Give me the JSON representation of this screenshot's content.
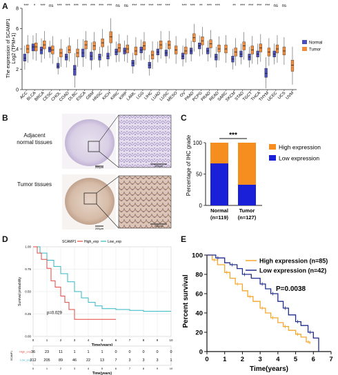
{
  "panel_labels": {
    "a": "A",
    "b": "B",
    "c": "C",
    "d": "D",
    "e": "E"
  },
  "panel_b": {
    "row1_label_line1": "Adjacent",
    "row1_label_line2": "normal tissues",
    "row2_label": "Tumor tissues",
    "scale_small": "200μm",
    "scale_large": "200μm"
  },
  "colors": {
    "normal": "#4a4fb8",
    "tumor": "#f08c3c",
    "high_km": "#f5a62a",
    "low_km": "#1f2b8c",
    "d_high": "#e2463f",
    "d_low": "#2fb6c2"
  },
  "chart_data": [
    {
      "panel": "A",
      "type": "box",
      "ylabel_line1": "The expression of SCAMP1",
      "ylabel_line2": "Log2 (TPM+1)",
      "ylim": [
        0,
        8
      ],
      "yticks": [
        0,
        2,
        4,
        6,
        8
      ],
      "legend": [
        "Normal",
        "Tumor"
      ],
      "categories": [
        "ACC",
        "BLCA",
        "BRCA",
        "CESC",
        "CHOL",
        "COAD",
        "DLBC",
        "ESCA",
        "GBM",
        "HNSC",
        "KICH",
        "KIRC",
        "KIRP",
        "LAML",
        "LGG",
        "LIHC",
        "LUAD",
        "LUSC",
        "MESO",
        "OV",
        "PAAD",
        "PCPG",
        "PRAD",
        "READ",
        "SARC",
        "SKCM",
        "STAD",
        "TGCT",
        "THCA",
        "THYM",
        "UCEC",
        "UCS",
        "UVM"
      ],
      "significance": [
        "***",
        "*",
        "***",
        "ns",
        "***",
        "***",
        "***",
        "***",
        "***",
        "***",
        "***",
        "ns",
        "ns",
        "***",
        "***",
        "***",
        "***",
        "***",
        "",
        "***",
        "***",
        "**",
        "***",
        "***",
        "",
        "**",
        "***",
        "***",
        "***",
        "***",
        "ns",
        "ns",
        ""
      ],
      "normal_median": [
        3.1,
        4.2,
        3.9,
        4.0,
        2.3,
        3.2,
        2.0,
        3.6,
        3.3,
        3.2,
        3.3,
        3.7,
        3.8,
        2.6,
        3.9,
        2.4,
        3.7,
        3.6,
        null,
        3.3,
        3.8,
        4.3,
        3.8,
        3.2,
        null,
        3.0,
        3.5,
        3.2,
        3.5,
        1.6,
        3.5,
        null,
        null
      ],
      "normal_q1": [
        2.8,
        3.8,
        3.5,
        3.7,
        2.1,
        2.9,
        1.4,
        3.2,
        2.9,
        2.9,
        3.0,
        3.4,
        3.5,
        2.3,
        3.6,
        2.1,
        3.4,
        3.3,
        null,
        3.0,
        3.5,
        4.0,
        3.5,
        2.9,
        null,
        2.7,
        3.2,
        2.9,
        3.2,
        1.2,
        3.2,
        null,
        null
      ],
      "normal_q3": [
        3.5,
        4.5,
        4.2,
        4.2,
        2.6,
        3.5,
        2.4,
        4.0,
        3.7,
        3.5,
        3.6,
        4.0,
        4.1,
        2.9,
        4.2,
        2.7,
        4.0,
        3.9,
        null,
        3.6,
        4.1,
        4.6,
        4.1,
        3.5,
        null,
        3.3,
        3.8,
        3.5,
        3.8,
        2.1,
        3.8,
        null,
        null
      ],
      "tumor_median": [
        4.0,
        4.2,
        4.4,
        3.9,
        3.6,
        3.9,
        3.6,
        4.4,
        4.3,
        4.6,
        5.2,
        4.1,
        4.0,
        3.8,
        4.3,
        3.4,
        4.4,
        4.4,
        3.9,
        3.8,
        5.1,
        4.8,
        4.5,
        4.0,
        4.0,
        3.7,
        4.3,
        3.9,
        4.1,
        3.7,
        4.0,
        3.8,
        2.4
      ],
      "tumor_q1": [
        3.6,
        3.8,
        4.0,
        3.5,
        3.2,
        3.6,
        3.2,
        4.0,
        3.9,
        4.2,
        4.6,
        3.7,
        3.6,
        3.4,
        3.9,
        3.0,
        4.0,
        4.0,
        3.5,
        3.5,
        4.7,
        4.4,
        4.1,
        3.7,
        3.6,
        3.3,
        3.9,
        3.5,
        3.7,
        3.3,
        3.6,
        3.4,
        1.8
      ],
      "tumor_q3": [
        4.4,
        4.6,
        4.8,
        4.3,
        4.0,
        4.3,
        4.0,
        4.8,
        4.7,
        5.0,
        5.7,
        4.5,
        4.4,
        4.2,
        4.7,
        3.8,
        4.8,
        4.8,
        4.3,
        4.2,
        5.5,
        5.2,
        4.9,
        4.4,
        4.4,
        4.1,
        4.7,
        4.3,
        4.5,
        4.1,
        4.4,
        4.2,
        2.9
      ]
    },
    {
      "panel": "C",
      "type": "stacked-bar",
      "ylabel": "Percentage of IHC grade",
      "ylim": [
        0,
        100
      ],
      "yticks": [
        0,
        50,
        100
      ],
      "categories": [
        "Normal",
        "Tumor"
      ],
      "category_n": [
        "(n=119)",
        "(n=127)"
      ],
      "significance": "***",
      "series": [
        {
          "name": "Low expression",
          "values": [
            67,
            33
          ]
        },
        {
          "name": "High expression",
          "values": [
            33,
            67
          ]
        }
      ],
      "legend_placement": "right"
    },
    {
      "panel": "D",
      "type": "line",
      "legend_title": "SCAMP1",
      "legend": [
        "High_exp",
        "Low_exp"
      ],
      "ylabel": "Survival probability",
      "xlabel": "Time(years)",
      "ylim": [
        0,
        1
      ],
      "yticks": [
        "0.00",
        "0.25",
        "0.50",
        "0.75",
        "1.00"
      ],
      "xlim": [
        0,
        10
      ],
      "xticks": [
        0,
        1,
        2,
        3,
        4,
        5,
        6,
        7,
        8,
        9,
        10
      ],
      "annotation": "p=0.029",
      "grid": true,
      "series": [
        {
          "name": "High_exp",
          "x": [
            0,
            0.3,
            0.6,
            1,
            1.3,
            1.6,
            2,
            2.3,
            2.6,
            3,
            6
          ],
          "y": [
            1,
            0.93,
            0.86,
            0.76,
            0.62,
            0.55,
            0.45,
            0.38,
            0.3,
            0.19,
            0.19
          ]
        },
        {
          "name": "Low_exp",
          "x": [
            0,
            0.5,
            1,
            1.5,
            2,
            2.5,
            3,
            3.5,
            4,
            4.5,
            5,
            6,
            7,
            8,
            9,
            10
          ],
          "y": [
            1,
            0.93,
            0.85,
            0.78,
            0.7,
            0.61,
            0.5,
            0.43,
            0.38,
            0.34,
            0.31,
            0.3,
            0.29,
            0.28,
            0.28,
            0.28
          ]
        }
      ],
      "risk_table": {
        "title": "Number at risk",
        "row_labels": [
          "High_exp",
          "Low_exp"
        ],
        "rows": [
          [
            "36",
            "23",
            "11",
            "1",
            "1",
            "1",
            "0",
            "0",
            "0",
            "0",
            "0"
          ],
          [
            "312",
            "205",
            "89",
            "46",
            "22",
            "13",
            "7",
            "3",
            "3",
            "3",
            "1"
          ]
        ],
        "xlabel": "Time(years)",
        "ylabel": "SCAMP1"
      }
    },
    {
      "panel": "E",
      "type": "line",
      "ylabel": "Percent survival",
      "xlabel": "Time(years)",
      "ylim": [
        0,
        100
      ],
      "yticks": [
        0,
        20,
        40,
        60,
        80,
        100
      ],
      "xlim": [
        0,
        7
      ],
      "xticks": [
        0,
        1,
        2,
        3,
        4,
        5,
        6,
        7
      ],
      "legend": [
        "High expression (n=85)",
        "Low expression (n=42)"
      ],
      "annotation": "P=0.0038",
      "series": [
        {
          "name": "High expression (n=85)",
          "x": [
            0,
            0.3,
            0.6,
            1,
            1.3,
            1.6,
            2,
            2.3,
            2.6,
            3,
            3.3,
            3.6,
            4,
            4.3,
            4.6,
            5,
            5.3,
            5.6,
            5.8
          ],
          "y": [
            100,
            95,
            90,
            82,
            76,
            70,
            63,
            57,
            52,
            45,
            40,
            35,
            30,
            26,
            22,
            18,
            15,
            10,
            8
          ]
        },
        {
          "name": "Low expression (n=42)",
          "x": [
            0,
            0.5,
            1,
            1.3,
            1.7,
            2,
            2.5,
            3,
            3.3,
            3.6,
            4,
            4.3,
            4.6,
            5,
            5.3,
            5.7,
            6,
            6.3
          ],
          "y": [
            100,
            97,
            92,
            90,
            86,
            80,
            76,
            70,
            65,
            60,
            52,
            45,
            38,
            31,
            27,
            20,
            14,
            0
          ]
        }
      ]
    }
  ]
}
